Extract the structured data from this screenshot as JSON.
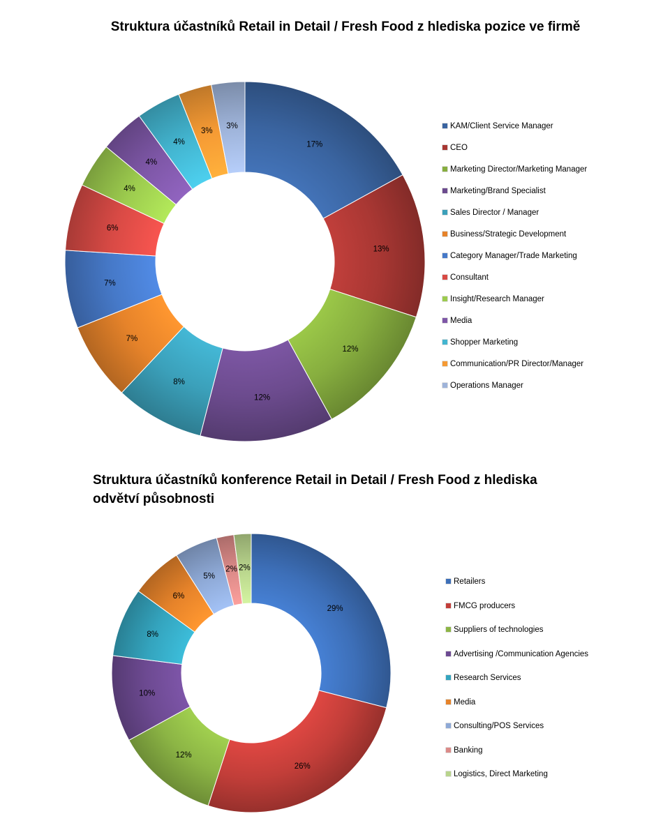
{
  "charts": [
    {
      "title": "Struktura účastníků Retail in Detail / Fresh Food z hlediska pozice ve firmě"
    },
    {
      "title": "Struktura účastníků konference Retail in Detail / Fresh Food z hlediska odvětví působnosti"
    }
  ],
  "chart_data": [
    {
      "type": "pie",
      "subtype": "donut",
      "title": "Struktura účastníků Retail in Detail / Fresh Food z hlediska pozice ve firmě",
      "legend": "right",
      "categories": [
        "KAM/Client Service Manager",
        "CEO",
        "Marketing Director/Marketing Manager",
        "Marketing/Brand Specialist",
        "Sales Director / Manager",
        "Business/Strategic Development",
        "Category Manager/Trade Marketing",
        "Consultant",
        "Insight/Research Manager",
        "Media",
        "Shopper Marketing",
        "Communication/PR  Director/Manager",
        "Operations Manager"
      ],
      "values": [
        17,
        13,
        12,
        12,
        8,
        7,
        7,
        6,
        4,
        4,
        4,
        3,
        3
      ],
      "labels": [
        "17%",
        "13%",
        "12%",
        "12%",
        "8%",
        "7%",
        "7%",
        "6%",
        "4%",
        "4%",
        "4%",
        "3%",
        "3%"
      ],
      "colors": [
        "#3A64A0",
        "#A83733",
        "#87AE3F",
        "#6C4B8E",
        "#3BA0BA",
        "#E6832A",
        "#4679C8",
        "#D84A45",
        "#9CCB4E",
        "#7E57A7",
        "#43B5D0",
        "#F59A34",
        "#9EB3D9"
      ]
    },
    {
      "type": "pie",
      "subtype": "donut",
      "title": "Struktura účastníků konference Retail in Detail / Fresh Food z hlediska odvětví působnosti",
      "legend": "right",
      "categories": [
        "Retailers",
        "FMCG producers",
        "Suppliers of technologies",
        "Advertising /Communication Agencies",
        "Research Services",
        "Media",
        "Consulting/POS Services",
        "Banking",
        "Logistics, Direct Marketing"
      ],
      "values": [
        29,
        26,
        12,
        10,
        8,
        6,
        5,
        2,
        2
      ],
      "labels": [
        "29%",
        "26%",
        "12%",
        "10%",
        "8%",
        "6%",
        "5%",
        "2%",
        "2%"
      ],
      "colors": [
        "#3D6FB8",
        "#C23E39",
        "#8CB545",
        "#6D4A92",
        "#34A4BE",
        "#E6832A",
        "#8EA9D6",
        "#DB8A88",
        "#B8D48C"
      ]
    }
  ]
}
